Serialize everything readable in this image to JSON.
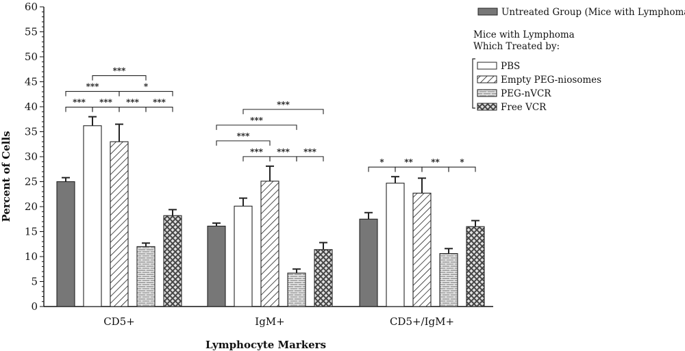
{
  "chart_data": {
    "type": "bar",
    "xlabel": "Lymphocyte Markers",
    "ylabel": "Percent of Cells",
    "ylim": [
      0,
      60
    ],
    "yticks": [
      0,
      5,
      10,
      15,
      20,
      25,
      30,
      35,
      40,
      45,
      50,
      55,
      60
    ],
    "categories": [
      "CD5+",
      "IgM+",
      "CD5+/IgM+"
    ],
    "legend_header": "Mice with Lymphoma Which Treated by:",
    "series": [
      {
        "name": "Untreated Group (Mice with Lymphoma)",
        "pattern": "solid",
        "color": "#777777",
        "values": [
          25,
          16.1,
          17.5
        ],
        "errors": [
          0.8,
          0.6,
          1.3
        ]
      },
      {
        "name": "PBS",
        "pattern": "open",
        "color": "#ffffff",
        "values": [
          36.2,
          20.1,
          24.7
        ],
        "errors": [
          1.8,
          1.6,
          1.3
        ]
      },
      {
        "name": "Empty PEG-niosomes",
        "pattern": "hatch",
        "color": "#ffffff",
        "values": [
          33,
          25.1,
          22.7
        ],
        "errors": [
          3.5,
          3.0,
          3.0
        ]
      },
      {
        "name": "PEG-nVCR",
        "pattern": "brick",
        "color": "#999999",
        "values": [
          12,
          6.7,
          10.6
        ],
        "errors": [
          0.7,
          0.8,
          1.0
        ]
      },
      {
        "name": "Free VCR",
        "pattern": "cross",
        "color": "#cccccc",
        "values": [
          18.2,
          11.4,
          16
        ],
        "errors": [
          1.2,
          1.4,
          1.2
        ]
      }
    ],
    "significance": [
      {
        "group": 0,
        "from": 0,
        "to": 1,
        "label": "***"
      },
      {
        "group": 0,
        "from": 1,
        "to": 2,
        "label": "***"
      },
      {
        "group": 0,
        "from": 2,
        "to": 3,
        "label": "***"
      },
      {
        "group": 0,
        "from": 3,
        "to": 4,
        "label": "***"
      },
      {
        "group": 0,
        "from": 0,
        "to": 2,
        "label": "***"
      },
      {
        "group": 0,
        "from": 2,
        "to": 4,
        "label": "*"
      },
      {
        "group": 0,
        "from": 1,
        "to": 3,
        "label": "***"
      },
      {
        "group": 1,
        "from": 0,
        "to": 2,
        "label": "***"
      },
      {
        "group": 1,
        "from": 1,
        "to": 2,
        "label": "***"
      },
      {
        "group": 1,
        "from": 2,
        "to": 3,
        "label": "***"
      },
      {
        "group": 1,
        "from": 3,
        "to": 4,
        "label": "***"
      },
      {
        "group": 1,
        "from": 0,
        "to": 3,
        "label": "***"
      },
      {
        "group": 1,
        "from": 1,
        "to": 4,
        "label": "***"
      },
      {
        "group": 2,
        "from": 0,
        "to": 1,
        "label": "*"
      },
      {
        "group": 2,
        "from": 1,
        "to": 2,
        "label": "**"
      },
      {
        "group": 2,
        "from": 2,
        "to": 3,
        "label": "**"
      },
      {
        "group": 2,
        "from": 3,
        "to": 4,
        "label": "*"
      }
    ]
  }
}
